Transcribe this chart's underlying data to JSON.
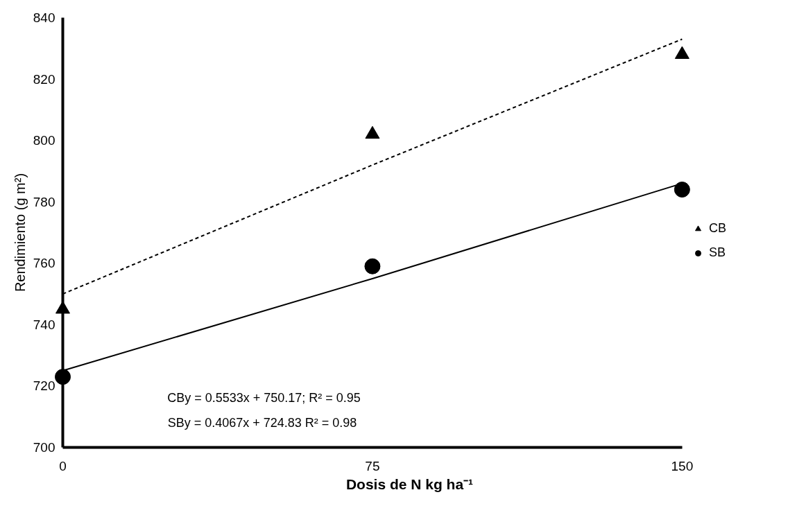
{
  "chart_data": {
    "type": "scatter",
    "xlabel": "Dosis de N kg ha⁻¹",
    "ylabel": "Rendimiento (g m²)",
    "x": [
      0,
      75,
      150
    ],
    "series": [
      {
        "name": "CB",
        "color": "#000000",
        "marker": "triangle",
        "values": [
          745,
          802,
          828
        ]
      },
      {
        "name": "SB",
        "color": "#000000",
        "marker": "circle",
        "values": [
          723,
          759,
          784
        ]
      },
      {
        "type": "line",
        "color": "#000000",
        "line_style": "dashed",
        "values": [
          750,
          792,
          833
        ]
      },
      {
        "type": "line",
        "color": "#000000",
        "line_style": "solid",
        "values": [
          725,
          755,
          786
        ]
      }
    ],
    "xlim": [
      0,
      150
    ],
    "xticks": [
      0,
      75,
      150
    ],
    "ylim": [
      700,
      840
    ],
    "yticks": [
      700,
      720,
      740,
      760,
      780,
      800,
      820,
      840
    ],
    "legend": "right",
    "annotations": [
      "CBy = 0.5533x + 750.17; R² = 0.95",
      "SBy = 0.4067x + 724.83  R² = 0.98"
    ]
  }
}
